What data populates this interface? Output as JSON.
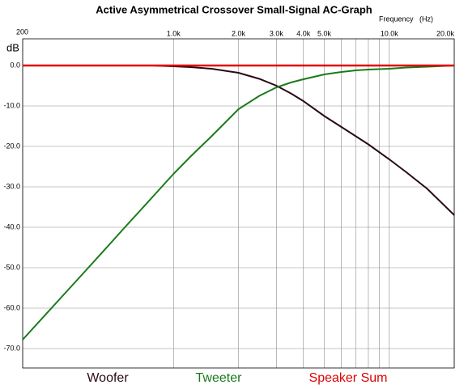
{
  "chart_data": {
    "type": "line",
    "title": "Active Asymmetrical Crossover Small-Signal AC-Graph",
    "x_label": "Frequency   (Hz)",
    "y_label": "dB",
    "x_scale": "log",
    "grid": true,
    "legend": "bottom",
    "x": [
      200,
      300,
      400,
      500,
      600,
      700,
      800,
      1000,
      1200,
      1500,
      2000,
      2500,
      3000,
      3500,
      4000,
      5000,
      6000,
      7000,
      8000,
      10000,
      12000,
      15000,
      20000
    ],
    "series": [
      {
        "name": "Woofer",
        "color": "#2a0a14",
        "values": [
          0,
          0,
          0,
          0,
          0,
          0,
          0,
          -0.2,
          -0.4,
          -0.8,
          -1.8,
          -3.3,
          -5.0,
          -6.9,
          -8.8,
          -12.5,
          -15.2,
          -17.5,
          -19.5,
          -23.2,
          -26.4,
          -30.5,
          -37
        ]
      },
      {
        "name": "Tweeter",
        "color": "#1a7a1a",
        "values": [
          -67.8,
          -57.5,
          -50.2,
          -44.5,
          -39.8,
          -35.9,
          -32.5,
          -26.8,
          -22.5,
          -17.5,
          -10.8,
          -7.5,
          -5.4,
          -4.2,
          -3.4,
          -2.2,
          -1.6,
          -1.2,
          -1.0,
          -0.8,
          -0.5,
          -0.3,
          0
        ]
      },
      {
        "name": "Speaker Sum",
        "color": "#e00000",
        "values": [
          0,
          0,
          0,
          0,
          0,
          0,
          0,
          0,
          0,
          0,
          0,
          0,
          0,
          0,
          0,
          0,
          0,
          0,
          0,
          0,
          0,
          0,
          0
        ]
      }
    ],
    "xlim": [
      200,
      20000
    ],
    "xticks": [
      {
        "value": 200,
        "label": "200"
      },
      {
        "value": 1000,
        "label": "1.0k"
      },
      {
        "value": 2000,
        "label": "2.0k"
      },
      {
        "value": 3000,
        "label": "3.0k"
      },
      {
        "value": 4000,
        "label": "4.0k"
      },
      {
        "value": 5000,
        "label": "5.0k"
      },
      {
        "value": 10000,
        "label": "10.0k"
      },
      {
        "value": 20000,
        "label": "20.0k"
      }
    ],
    "xgrid_minor": [
      6000,
      7000,
      8000,
      9000
    ],
    "ylim": [
      -74.8,
      6.6
    ],
    "yticks": [
      {
        "value": 0,
        "label": "0.0"
      },
      {
        "value": -10,
        "label": "-10.0"
      },
      {
        "value": -20,
        "label": "-20.0"
      },
      {
        "value": -30,
        "label": "-30.0"
      },
      {
        "value": -40,
        "label": "-40.0"
      },
      {
        "value": -50,
        "label": "-50.0"
      },
      {
        "value": -60,
        "label": "-60.0"
      },
      {
        "value": -70,
        "label": "-70.0"
      }
    ]
  }
}
